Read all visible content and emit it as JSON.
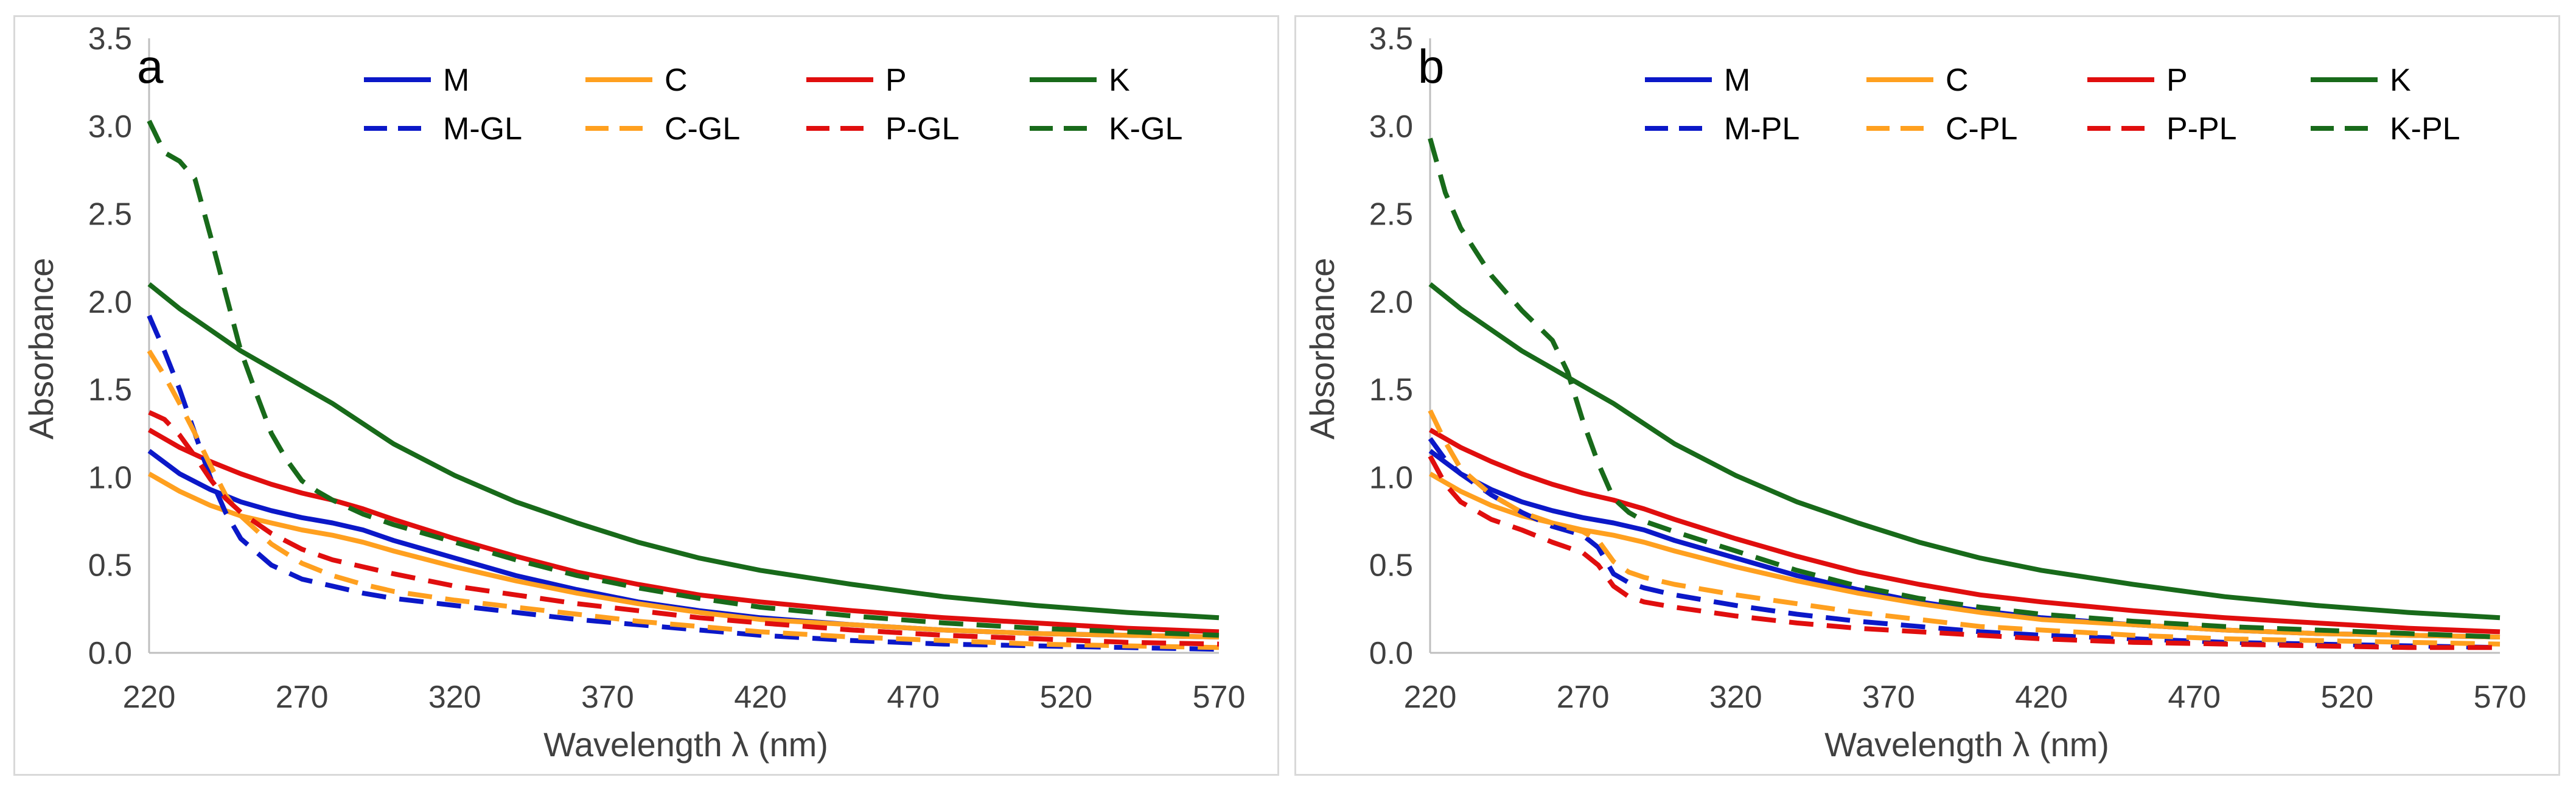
{
  "colors": {
    "M": "#0b18c8",
    "C": "#ffa01f",
    "P": "#e00e0e",
    "K": "#186a1a",
    "axis": "#bfbfbf",
    "border": "#d9d9d9"
  },
  "chart_data": [
    {
      "type": "line",
      "panel_label": "a",
      "xlabel": "Wavelength λ (nm)",
      "ylabel": "Absorbance",
      "xlim": [
        220,
        570
      ],
      "ylim": [
        0,
        3.5
      ],
      "x_ticks": [
        "220",
        "270",
        "320",
        "370",
        "420",
        "470",
        "520",
        "570"
      ],
      "y_ticks": [
        "0.0",
        "0.5",
        "1.0",
        "1.5",
        "2.0",
        "2.5",
        "3.0",
        "3.5"
      ],
      "legend_position": "top",
      "series": [
        {
          "name": "M",
          "color": "#0b18c8",
          "dashed": false,
          "x": [
            220,
            230,
            240,
            250,
            260,
            270,
            280,
            290,
            300,
            320,
            340,
            360,
            380,
            400,
            420,
            450,
            480,
            510,
            540,
            570
          ],
          "y": [
            1.15,
            1.02,
            0.93,
            0.86,
            0.81,
            0.77,
            0.74,
            0.7,
            0.64,
            0.54,
            0.44,
            0.36,
            0.29,
            0.24,
            0.2,
            0.16,
            0.13,
            0.11,
            0.1,
            0.09
          ]
        },
        {
          "name": "C",
          "color": "#ffa01f",
          "dashed": false,
          "x": [
            220,
            230,
            240,
            250,
            260,
            270,
            280,
            290,
            300,
            320,
            340,
            360,
            380,
            400,
            420,
            450,
            480,
            510,
            540,
            570
          ],
          "y": [
            1.02,
            0.92,
            0.84,
            0.78,
            0.74,
            0.7,
            0.67,
            0.63,
            0.58,
            0.49,
            0.41,
            0.34,
            0.28,
            0.23,
            0.19,
            0.16,
            0.13,
            0.11,
            0.1,
            0.09
          ]
        },
        {
          "name": "P",
          "color": "#e00e0e",
          "dashed": false,
          "x": [
            220,
            230,
            240,
            250,
            260,
            270,
            280,
            290,
            300,
            320,
            340,
            360,
            380,
            400,
            420,
            450,
            480,
            510,
            540,
            570
          ],
          "y": [
            1.27,
            1.17,
            1.09,
            1.02,
            0.96,
            0.91,
            0.87,
            0.82,
            0.76,
            0.65,
            0.55,
            0.46,
            0.39,
            0.33,
            0.29,
            0.24,
            0.2,
            0.17,
            0.14,
            0.12
          ]
        },
        {
          "name": "K",
          "color": "#186a1a",
          "dashed": false,
          "x": [
            220,
            230,
            240,
            250,
            260,
            270,
            280,
            300,
            320,
            340,
            360,
            380,
            400,
            420,
            450,
            480,
            510,
            540,
            570
          ],
          "y": [
            2.1,
            1.96,
            1.84,
            1.72,
            1.62,
            1.52,
            1.42,
            1.19,
            1.01,
            0.86,
            0.74,
            0.63,
            0.54,
            0.47,
            0.39,
            0.32,
            0.27,
            0.23,
            0.2
          ]
        },
        {
          "name": "M-GL",
          "color": "#0b18c8",
          "dashed": true,
          "x": [
            220,
            225,
            230,
            235,
            240,
            245,
            250,
            260,
            270,
            280,
            290,
            300,
            320,
            340,
            360,
            380,
            400,
            420,
            450,
            480,
            510,
            540,
            570
          ],
          "y": [
            1.92,
            1.72,
            1.5,
            1.25,
            1.0,
            0.8,
            0.65,
            0.5,
            0.42,
            0.38,
            0.34,
            0.31,
            0.27,
            0.23,
            0.19,
            0.16,
            0.13,
            0.1,
            0.07,
            0.05,
            0.04,
            0.03,
            0.02
          ]
        },
        {
          "name": "C-GL",
          "color": "#ffa01f",
          "dashed": true,
          "x": [
            220,
            225,
            230,
            235,
            240,
            245,
            250,
            260,
            270,
            280,
            290,
            300,
            320,
            340,
            360,
            380,
            400,
            420,
            450,
            480,
            510,
            540,
            570
          ],
          "y": [
            1.72,
            1.58,
            1.42,
            1.25,
            1.07,
            0.9,
            0.78,
            0.62,
            0.51,
            0.44,
            0.39,
            0.35,
            0.3,
            0.26,
            0.22,
            0.18,
            0.15,
            0.12,
            0.09,
            0.07,
            0.05,
            0.04,
            0.03
          ]
        },
        {
          "name": "P-GL",
          "color": "#e00e0e",
          "dashed": true,
          "x": [
            220,
            225,
            230,
            235,
            240,
            245,
            250,
            260,
            270,
            280,
            290,
            300,
            320,
            340,
            360,
            380,
            400,
            420,
            450,
            480,
            510,
            540,
            570
          ],
          "y": [
            1.37,
            1.33,
            1.24,
            1.12,
            0.99,
            0.88,
            0.8,
            0.68,
            0.59,
            0.53,
            0.49,
            0.45,
            0.38,
            0.33,
            0.28,
            0.24,
            0.2,
            0.17,
            0.13,
            0.1,
            0.08,
            0.06,
            0.05
          ]
        },
        {
          "name": "K-GL",
          "color": "#186a1a",
          "dashed": true,
          "x": [
            220,
            225,
            230,
            235,
            240,
            245,
            250,
            255,
            260,
            265,
            270,
            275,
            280,
            290,
            300,
            320,
            340,
            360,
            380,
            400,
            420,
            450,
            480,
            510,
            540,
            570
          ],
          "y": [
            3.03,
            2.85,
            2.8,
            2.7,
            2.38,
            2.05,
            1.72,
            1.48,
            1.25,
            1.1,
            0.98,
            0.92,
            0.87,
            0.79,
            0.73,
            0.63,
            0.53,
            0.44,
            0.37,
            0.31,
            0.26,
            0.21,
            0.17,
            0.14,
            0.12,
            0.1
          ]
        }
      ]
    },
    {
      "type": "line",
      "panel_label": "b",
      "xlabel": "Wavelength λ (nm)",
      "ylabel": "Absorbance",
      "xlim": [
        220,
        570
      ],
      "ylim": [
        0,
        3.5
      ],
      "x_ticks": [
        "220",
        "270",
        "320",
        "370",
        "420",
        "470",
        "520",
        "570"
      ],
      "y_ticks": [
        "0.0",
        "0.5",
        "1.0",
        "1.5",
        "2.0",
        "2.5",
        "3.0",
        "3.5"
      ],
      "legend_position": "top",
      "series": [
        {
          "name": "M",
          "color": "#0b18c8",
          "dashed": false,
          "x": [
            220,
            230,
            240,
            250,
            260,
            270,
            280,
            290,
            300,
            320,
            340,
            360,
            380,
            400,
            420,
            450,
            480,
            510,
            540,
            570
          ],
          "y": [
            1.15,
            1.02,
            0.93,
            0.86,
            0.81,
            0.77,
            0.74,
            0.7,
            0.64,
            0.54,
            0.44,
            0.36,
            0.29,
            0.24,
            0.2,
            0.16,
            0.13,
            0.11,
            0.1,
            0.09
          ]
        },
        {
          "name": "C",
          "color": "#ffa01f",
          "dashed": false,
          "x": [
            220,
            230,
            240,
            250,
            260,
            270,
            280,
            290,
            300,
            320,
            340,
            360,
            380,
            400,
            420,
            450,
            480,
            510,
            540,
            570
          ],
          "y": [
            1.02,
            0.92,
            0.84,
            0.78,
            0.74,
            0.7,
            0.67,
            0.63,
            0.58,
            0.49,
            0.41,
            0.34,
            0.28,
            0.23,
            0.19,
            0.16,
            0.13,
            0.11,
            0.1,
            0.09
          ]
        },
        {
          "name": "P",
          "color": "#e00e0e",
          "dashed": false,
          "x": [
            220,
            230,
            240,
            250,
            260,
            270,
            280,
            290,
            300,
            320,
            340,
            360,
            380,
            400,
            420,
            450,
            480,
            510,
            540,
            570
          ],
          "y": [
            1.27,
            1.17,
            1.09,
            1.02,
            0.96,
            0.91,
            0.87,
            0.82,
            0.76,
            0.65,
            0.55,
            0.46,
            0.39,
            0.33,
            0.29,
            0.24,
            0.2,
            0.17,
            0.14,
            0.12
          ]
        },
        {
          "name": "K",
          "color": "#186a1a",
          "dashed": false,
          "x": [
            220,
            230,
            240,
            250,
            260,
            270,
            280,
            300,
            320,
            340,
            360,
            380,
            400,
            420,
            450,
            480,
            510,
            540,
            570
          ],
          "y": [
            2.1,
            1.96,
            1.84,
            1.72,
            1.62,
            1.52,
            1.42,
            1.19,
            1.01,
            0.86,
            0.74,
            0.63,
            0.54,
            0.47,
            0.39,
            0.32,
            0.27,
            0.23,
            0.2
          ]
        },
        {
          "name": "M-PL",
          "color": "#0b18c8",
          "dashed": true,
          "x": [
            220,
            225,
            230,
            240,
            250,
            260,
            270,
            275,
            280,
            285,
            290,
            300,
            320,
            340,
            360,
            380,
            400,
            420,
            450,
            480,
            510,
            540,
            570
          ],
          "y": [
            1.22,
            1.1,
            1.02,
            0.9,
            0.8,
            0.72,
            0.67,
            0.6,
            0.45,
            0.4,
            0.37,
            0.33,
            0.27,
            0.22,
            0.18,
            0.15,
            0.12,
            0.1,
            0.08,
            0.06,
            0.05,
            0.04,
            0.03
          ]
        },
        {
          "name": "C-PL",
          "color": "#ffa01f",
          "dashed": true,
          "x": [
            220,
            225,
            230,
            240,
            250,
            260,
            270,
            275,
            280,
            285,
            290,
            300,
            320,
            340,
            360,
            380,
            400,
            420,
            450,
            480,
            510,
            540,
            570
          ],
          "y": [
            1.38,
            1.2,
            1.05,
            0.9,
            0.8,
            0.74,
            0.69,
            0.64,
            0.52,
            0.46,
            0.43,
            0.39,
            0.33,
            0.28,
            0.23,
            0.19,
            0.15,
            0.13,
            0.1,
            0.08,
            0.07,
            0.06,
            0.05
          ]
        },
        {
          "name": "P-PL",
          "color": "#e00e0e",
          "dashed": true,
          "x": [
            220,
            225,
            230,
            240,
            250,
            260,
            270,
            275,
            280,
            285,
            290,
            300,
            320,
            340,
            360,
            380,
            400,
            420,
            450,
            480,
            510,
            540,
            570
          ],
          "y": [
            1.12,
            0.96,
            0.86,
            0.76,
            0.7,
            0.63,
            0.57,
            0.5,
            0.38,
            0.32,
            0.29,
            0.26,
            0.21,
            0.17,
            0.14,
            0.12,
            0.1,
            0.08,
            0.06,
            0.05,
            0.04,
            0.03,
            0.03
          ]
        },
        {
          "name": "K-PL",
          "color": "#186a1a",
          "dashed": true,
          "x": [
            220,
            225,
            230,
            240,
            250,
            260,
            265,
            270,
            275,
            280,
            285,
            290,
            300,
            320,
            340,
            360,
            380,
            400,
            420,
            450,
            480,
            510,
            540,
            570
          ],
          "y": [
            2.93,
            2.62,
            2.42,
            2.15,
            1.95,
            1.78,
            1.6,
            1.32,
            1.08,
            0.88,
            0.8,
            0.75,
            0.69,
            0.58,
            0.47,
            0.38,
            0.31,
            0.26,
            0.22,
            0.18,
            0.15,
            0.13,
            0.11,
            0.09
          ]
        }
      ]
    }
  ]
}
